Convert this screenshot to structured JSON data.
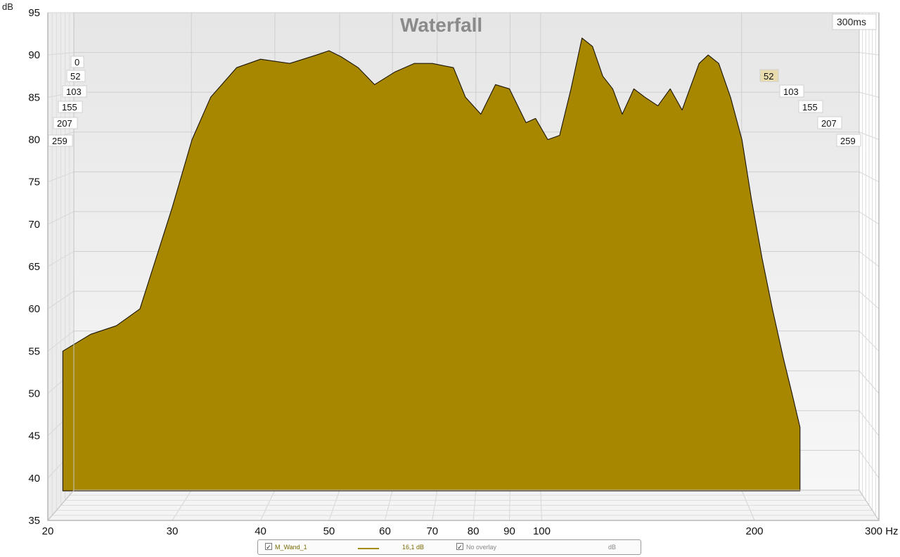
{
  "chart_data": {
    "type": "area",
    "subtype": "waterfall-3d",
    "title": "Waterfall",
    "time_span_label": "300ms",
    "x_axis": {
      "unit_label": "Hz",
      "scale": "log",
      "range": [
        20,
        300
      ],
      "ticks": [
        20,
        30,
        40,
        50,
        60,
        70,
        80,
        90,
        100,
        200,
        300
      ],
      "tick_labels": [
        "20",
        "30",
        "40",
        "50",
        "60",
        "70",
        "80",
        "90",
        "100",
        "200",
        "300 Hz"
      ]
    },
    "y_axis": {
      "unit_label": "dB",
      "range": [
        35,
        95
      ],
      "ticks": [
        35,
        40,
        45,
        50,
        55,
        60,
        65,
        70,
        75,
        80,
        85,
        90,
        95
      ],
      "tick_labels": [
        "35",
        "40",
        "45",
        "50",
        "55",
        "60",
        "65",
        "70",
        "75",
        "80",
        "85",
        "90",
        "95"
      ]
    },
    "z_axis": {
      "unit": "ms",
      "tick_labels_left": [
        "0",
        "52",
        "103",
        "155",
        "207",
        "259"
      ],
      "tick_labels_right": [
        "52",
        "103",
        "155",
        "207",
        "259"
      ]
    },
    "grid": true,
    "fill_color": "#a88700",
    "line_color": "#1b1400",
    "front_response": {
      "freq_hz": [
        21,
        23,
        25,
        27,
        30,
        32,
        34,
        37,
        40,
        44,
        48,
        50,
        52,
        55,
        58,
        62,
        66,
        70,
        75,
        78,
        82,
        86,
        90,
        95,
        98,
        102,
        106,
        110,
        114,
        118,
        122,
        126,
        130,
        135,
        140,
        146,
        152,
        158,
        162,
        167,
        172,
        178,
        185,
        192,
        198,
        205,
        212,
        220,
        226,
        232
      ],
      "db": [
        55,
        57,
        58,
        60,
        72,
        80,
        85,
        88.5,
        89.5,
        89,
        90,
        90.5,
        89.8,
        88.5,
        86.5,
        88,
        89,
        89,
        88.5,
        85,
        83,
        86.5,
        86,
        82,
        82.5,
        80,
        80.5,
        86,
        92,
        91,
        87.5,
        86,
        83,
        86,
        85,
        84,
        86,
        83.5,
        86,
        89,
        90,
        89,
        85,
        80,
        73,
        66,
        60,
        54,
        50,
        46
      ]
    },
    "slice_count": 30
  },
  "legend": {
    "series_name": "M_Wand_1",
    "series_value": "16,1 dB",
    "overlay_label": "No overlay",
    "overlay_unit": "dB",
    "series_checked": true,
    "overlay_checked": true
  }
}
